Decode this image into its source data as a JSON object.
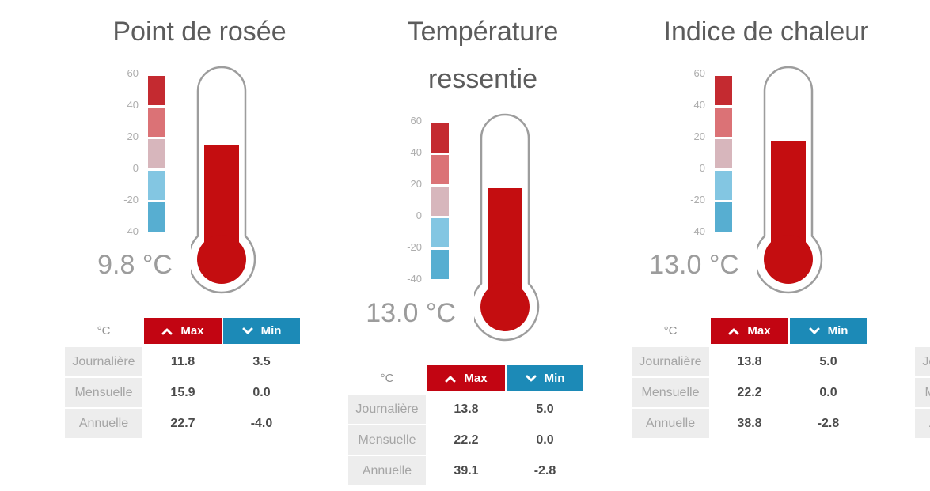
{
  "colors": {
    "title": "#5c5c5c",
    "tick": "#adadad",
    "value": "#9c9c9c",
    "unit": "#909090",
    "max_button": "#c20512",
    "min_button": "#1c8ab7",
    "thermo_fill": "#c40d10",
    "thermo_outline": "#9d9d9d",
    "label_bg": "#ededed",
    "label_text": "#a5a5a5",
    "value_text": "#4b4b4b"
  },
  "scale": {
    "ticks": [
      "60",
      "40",
      "20",
      "0",
      "-20",
      "-40"
    ],
    "colors": [
      "#c42a30",
      "#db7276",
      "#d7b6bc",
      "#83c6e2",
      "#57aed1"
    ]
  },
  "table_header": {
    "unit": "°C",
    "max": "Max",
    "min": "Min"
  },
  "widgets": [
    {
      "title": "Point de rosée",
      "value": 9.8,
      "value_label": "9.8 °C",
      "rows": [
        {
          "label": "Journalière",
          "max": "11.8",
          "min": "3.5"
        },
        {
          "label": "Mensuelle",
          "max": "15.9",
          "min": "0.0"
        },
        {
          "label": "Annuelle",
          "max": "22.7",
          "min": "-4.0"
        }
      ]
    },
    {
      "title": "Température ressentie",
      "value": 13.0,
      "value_label": "13.0 °C",
      "rows": [
        {
          "label": "Journalière",
          "max": "13.8",
          "min": "5.0"
        },
        {
          "label": "Mensuelle",
          "max": "22.2",
          "min": "0.0"
        },
        {
          "label": "Annuelle",
          "max": "39.1",
          "min": "-2.8"
        }
      ]
    },
    {
      "title": "Indice de chaleur",
      "value": 13.0,
      "value_label": "13.0 °C",
      "rows": [
        {
          "label": "Journalière",
          "max": "13.8",
          "min": "5.0"
        },
        {
          "label": "Mensuelle",
          "max": "22.2",
          "min": "0.0"
        },
        {
          "label": "Annuelle",
          "max": "38.8",
          "min": "-2.8"
        }
      ]
    }
  ],
  "partial_widget": {
    "rows": [
      "Journalière",
      "Mensuelle",
      "Annuelle"
    ]
  },
  "chart_data": [
    {
      "type": "gauge",
      "title": "Point de rosée",
      "unit": "°C",
      "current": 9.8,
      "scale_ticks": [
        60,
        40,
        20,
        0,
        -20,
        -40
      ],
      "table": {
        "columns": [
          "°C",
          "Max",
          "Min"
        ],
        "rows": [
          [
            "Journalière",
            11.8,
            3.5
          ],
          [
            "Mensuelle",
            15.9,
            0.0
          ],
          [
            "Annuelle",
            22.7,
            -4.0
          ]
        ]
      }
    },
    {
      "type": "gauge",
      "title": "Température ressentie",
      "unit": "°C",
      "current": 13.0,
      "scale_ticks": [
        60,
        40,
        20,
        0,
        -20,
        -40
      ],
      "table": {
        "columns": [
          "°C",
          "Max",
          "Min"
        ],
        "rows": [
          [
            "Journalière",
            13.8,
            5.0
          ],
          [
            "Mensuelle",
            22.2,
            0.0
          ],
          [
            "Annuelle",
            39.1,
            -2.8
          ]
        ]
      }
    },
    {
      "type": "gauge",
      "title": "Indice de chaleur",
      "unit": "°C",
      "current": 13.0,
      "scale_ticks": [
        60,
        40,
        20,
        0,
        -20,
        -40
      ],
      "table": {
        "columns": [
          "°C",
          "Max",
          "Min"
        ],
        "rows": [
          [
            "Journalière",
            13.8,
            5.0
          ],
          [
            "Mensuelle",
            22.2,
            0.0
          ],
          [
            "Annuelle",
            38.8,
            -2.8
          ]
        ]
      }
    }
  ]
}
